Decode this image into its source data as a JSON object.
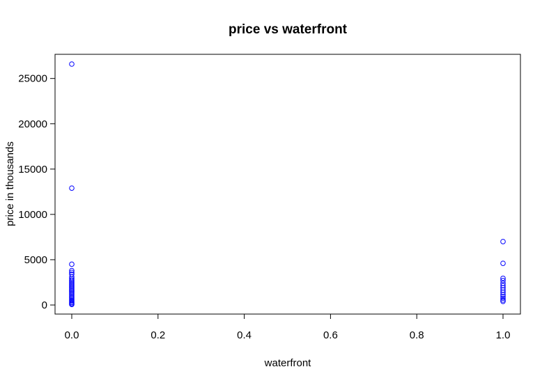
{
  "chart_data": {
    "type": "scatter",
    "title": "price vs waterfront",
    "xlabel": "waterfront",
    "ylabel": "price in thousands",
    "xlim": [
      0.0,
      1.0
    ],
    "ylim": [
      0,
      26590
    ],
    "x_ticks": [
      "0.0",
      "0.2",
      "0.4",
      "0.6",
      "0.8",
      "1.0"
    ],
    "y_ticks": [
      "0",
      "5000",
      "10000",
      "15000",
      "20000",
      "25000"
    ],
    "grid": false,
    "legend": "none",
    "point_style": "open-circle",
    "colors": {
      "point": "#0000ff",
      "axis": "#000000"
    },
    "series": [
      {
        "points": [
          [
            0,
            26590
          ],
          [
            0,
            12900
          ],
          [
            0,
            4500
          ],
          [
            0,
            3800
          ],
          [
            0,
            3600
          ],
          [
            0,
            3400
          ],
          [
            0,
            3100
          ],
          [
            0,
            2900
          ],
          [
            0,
            2750
          ],
          [
            0,
            2600
          ],
          [
            0,
            2450
          ],
          [
            0,
            2300
          ],
          [
            0,
            2150
          ],
          [
            0,
            2000
          ],
          [
            0,
            1850
          ],
          [
            0,
            1700
          ],
          [
            0,
            1550
          ],
          [
            0,
            1400
          ],
          [
            0,
            1250
          ],
          [
            0,
            1100
          ],
          [
            0,
            950
          ],
          [
            0,
            800
          ],
          [
            0,
            650
          ],
          [
            0,
            500
          ],
          [
            0,
            380
          ],
          [
            0,
            260
          ],
          [
            0,
            150
          ],
          [
            0,
            60
          ],
          [
            1,
            7000
          ],
          [
            1,
            4600
          ],
          [
            1,
            2950
          ],
          [
            1,
            2700
          ],
          [
            1,
            2400
          ],
          [
            1,
            2150
          ],
          [
            1,
            1900
          ],
          [
            1,
            1650
          ],
          [
            1,
            1400
          ],
          [
            1,
            1150
          ],
          [
            1,
            950
          ],
          [
            1,
            750
          ],
          [
            1,
            550
          ],
          [
            1,
            400
          ]
        ]
      }
    ]
  }
}
